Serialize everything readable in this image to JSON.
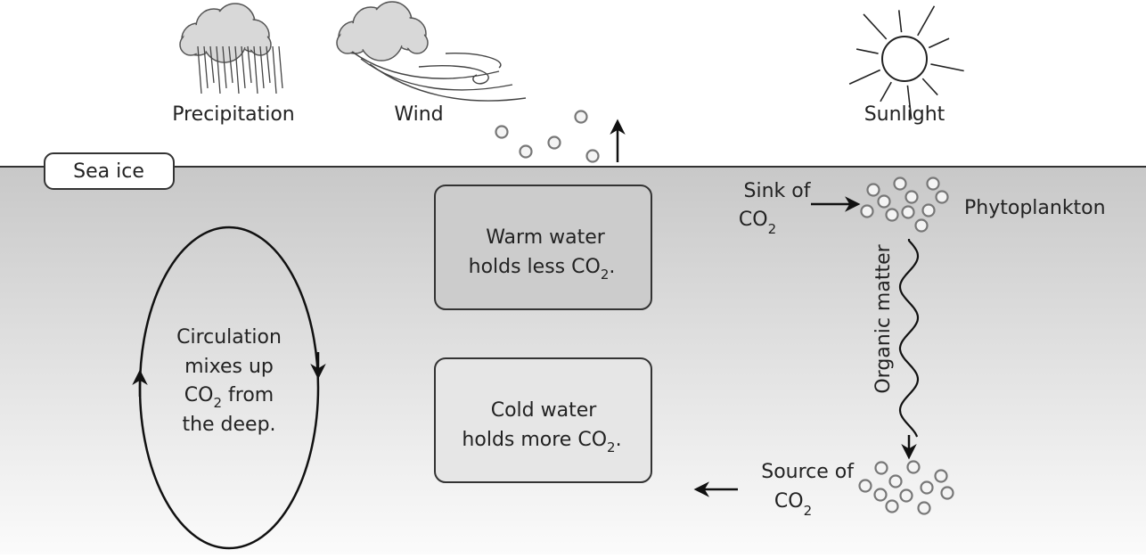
{
  "weather": {
    "precipitation": "Precipitation",
    "wind": "Wind",
    "sunlight": "Sunlight"
  },
  "sea_ice": "Sea ice",
  "warm_water": {
    "lines": [
      [
        "Warm water"
      ],
      [
        "holds less CO",
        "2",
        "."
      ]
    ]
  },
  "cold_water": {
    "lines": [
      [
        "Cold water"
      ],
      [
        "holds more CO",
        "2",
        "."
      ]
    ]
  },
  "circulation": {
    "lines": [
      [
        "Circulation"
      ],
      [
        "mixes up"
      ],
      [
        "CO",
        "2",
        " from"
      ],
      [
        "the deep."
      ]
    ]
  },
  "sink": {
    "lines": [
      [
        "Sink of"
      ],
      [
        "CO",
        "2"
      ]
    ]
  },
  "phytoplankton": "Phytoplankton",
  "organic_matter": "Organic matter",
  "source": {
    "lines": [
      [
        "Source of"
      ],
      [
        "CO",
        "2"
      ]
    ]
  }
}
